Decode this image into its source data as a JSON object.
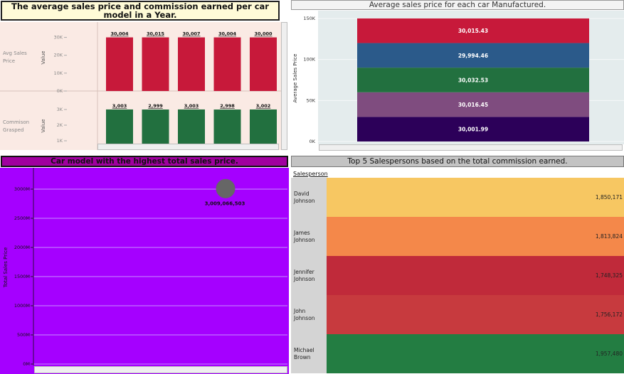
{
  "panel1": {
    "title": "The average sales price and commission earned per car model in a Year.",
    "row1_label": "Avg Sales Price",
    "row2_label": "Commison Grasped",
    "axis_label": "Value",
    "row1_ticks": [
      "30K",
      "20K",
      "10K",
      "0K"
    ],
    "row2_ticks": [
      "3K",
      "2K",
      "1K"
    ],
    "colors": {
      "sales": "#c7193a",
      "commission": "#22703f",
      "background": "#faeae4"
    }
  },
  "panel2": {
    "title": "Average sales price for each car Manufactured.",
    "ylabel": "Average Sales Price",
    "ticks": [
      "150K",
      "100K",
      "50K",
      "0K"
    ],
    "colors": [
      "#2c0059",
      "#7f4c7f",
      "#22703f",
      "#2b5a8a",
      "#c7193a"
    ]
  },
  "panel3": {
    "title": "Car model with the highest total sales price.",
    "ylabel": "Total Sales Price",
    "ticks": [
      "3000M",
      "2500M",
      "2000M",
      "1500M",
      "1000M",
      "500M",
      "0M"
    ],
    "point_label": "3,009,066,503",
    "colors": {
      "background": "#a500ff",
      "point": "#666666"
    }
  },
  "panel4": {
    "title": "Top 5 Salespersons based on the total commission earned.",
    "column_header": "Salesperson",
    "colors": [
      "#f7c762",
      "#f4884a",
      "#c02a3a",
      "#c73a3e",
      "#237d42"
    ]
  },
  "chart_data": [
    {
      "type": "bar",
      "title": "The average sales price and commission earned per car model in a Year.",
      "categories": [
        "",
        "",
        "",
        "",
        ""
      ],
      "series": [
        {
          "name": "Avg Sales Price",
          "values": [
            30004,
            30015,
            30007,
            30004,
            30000
          ],
          "labels": [
            "30,004",
            "30,015",
            "30,007",
            "30,004",
            "30,000"
          ]
        },
        {
          "name": "Commison Grasped",
          "values": [
            3003,
            2999,
            3003,
            2998,
            3002
          ],
          "labels": [
            "3,003",
            "2,999",
            "3,003",
            "2,998",
            "3,002"
          ]
        }
      ],
      "ylabel": "Value",
      "ylim_series1": [
        0,
        35000
      ],
      "ylim_series2": [
        500,
        3500
      ]
    },
    {
      "type": "bar",
      "title": "Average sales price for each car Manufactured.",
      "stacked": true,
      "ylabel": "Average Sales Price",
      "ylim": [
        0,
        150000
      ],
      "values": [
        30001.99,
        30016.45,
        30032.53,
        29994.46,
        30015.43
      ],
      "labels": [
        "30,001.99",
        "30,016.45",
        "30,032.53",
        "29,994.46",
        "30,015.43"
      ]
    },
    {
      "type": "scatter",
      "title": "Car model with the highest total sales price.",
      "ylabel": "Total Sales Price",
      "ylim": [
        0,
        3200000000
      ],
      "points": [
        {
          "y": 3009066503,
          "label": "3,009,066,503"
        }
      ]
    },
    {
      "type": "table",
      "title": "Top 5 Salespersons based on the total commission earned.",
      "column": "Salesperson",
      "rows": [
        {
          "name": "David Johnson",
          "value": 1850171,
          "label": "1,850,171"
        },
        {
          "name": "James Johnson",
          "value": 1813824,
          "label": "1,813,824"
        },
        {
          "name": "Jennifer Johnson",
          "value": 1748325,
          "label": "1,748,325"
        },
        {
          "name": "John Johnson",
          "value": 1756172,
          "label": "1,756,172"
        },
        {
          "name": "Michael Brown",
          "value": 1957480,
          "label": "1,957,480"
        }
      ]
    }
  ]
}
